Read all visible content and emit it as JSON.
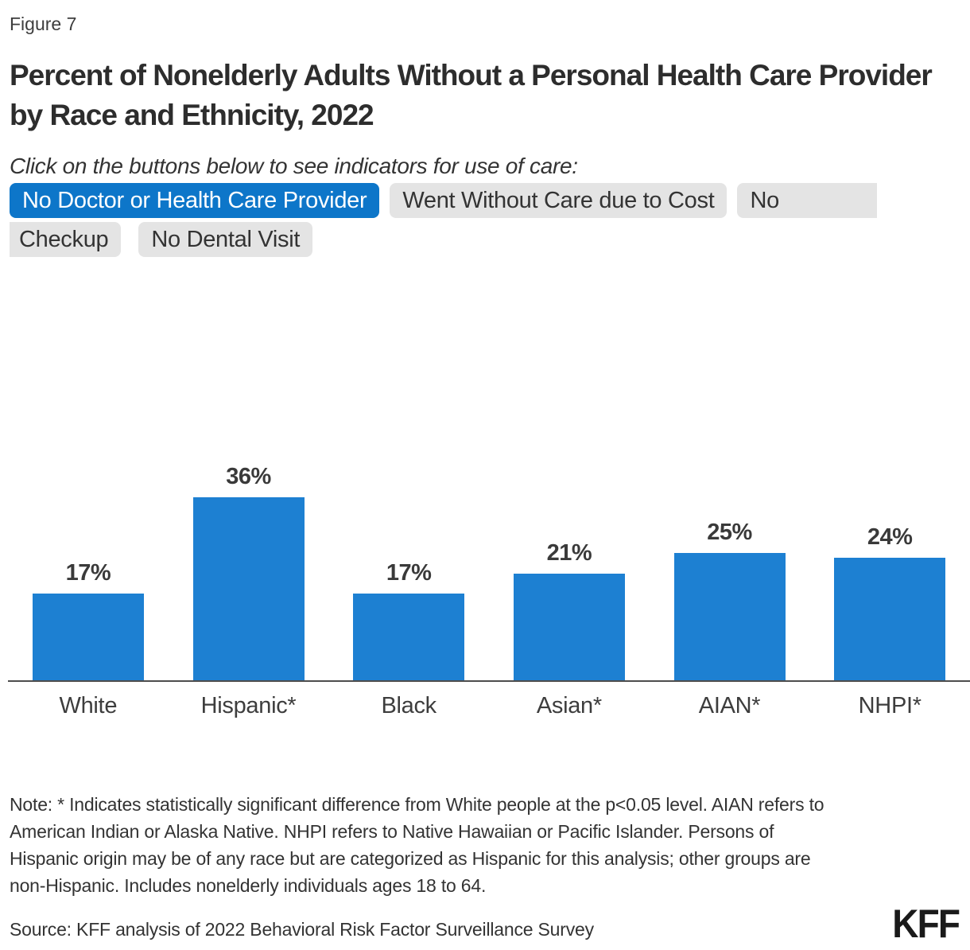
{
  "figure_label": "Figure 7",
  "title": "Percent of Nonelderly Adults Without a Personal Health Care Provider by Race and Ethnicity, 2022",
  "subtitle": "Click on the buttons below to see indicators for use of care:",
  "buttons": {
    "items": [
      {
        "label": "No Doctor or Health Care Provider",
        "active": true
      },
      {
        "label": "Went Without Care due to Cost",
        "active": false
      },
      {
        "label": "No Checkup",
        "active": false,
        "fragments": [
          "No",
          "Checkup"
        ]
      },
      {
        "label": "No Dental Visit",
        "active": false
      }
    ]
  },
  "chart_data": {
    "type": "bar",
    "title": "Percent of Nonelderly Adults Without a Personal Health Care Provider by Race and Ethnicity, 2022",
    "categories": [
      "White",
      "Hispanic*",
      "Black",
      "Asian*",
      "AIAN*",
      "NHPI*"
    ],
    "values": [
      17,
      36,
      17,
      21,
      25,
      24
    ],
    "value_labels": [
      "17%",
      "36%",
      "17%",
      "21%",
      "25%",
      "24%"
    ],
    "xlabel": "",
    "ylabel": "",
    "ylim": [
      0,
      40
    ],
    "grid": false,
    "legend": false,
    "bar_color": "#1d80d2"
  },
  "note": "Note: * Indicates statistically significant difference from White people at the p<0.05 level. AIAN refers to American Indian or Alaska Native. NHPI refers to Native Hawaiian or Pacific Islander. Persons of Hispanic origin may be of any race but are categorized as Hispanic for this analysis; other groups are non-Hispanic. Includes nonelderly individuals ages 18 to 64.",
  "source": "Source: KFF analysis of 2022 Behavioral Risk Factor Surveillance Survey",
  "logo": "KFF",
  "colors": {
    "accent_blue": "#0d76c9",
    "bar_blue": "#1d80d2",
    "pill_gray": "#e4e4e4",
    "text_dark": "#333333",
    "axis_gray": "#4d4d4d"
  }
}
